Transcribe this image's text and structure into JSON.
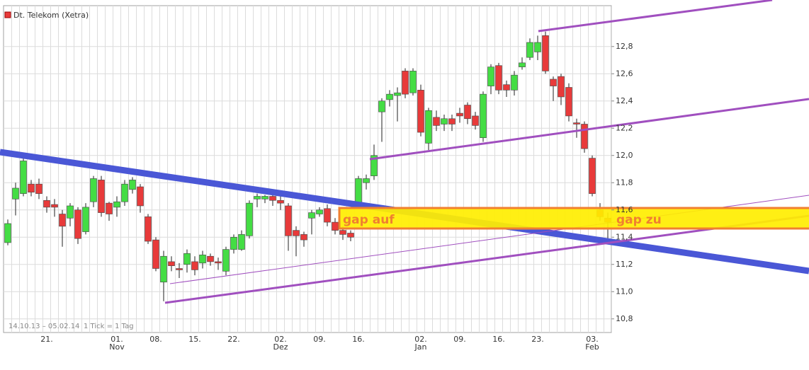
{
  "chart_data": {
    "type": "candlestick",
    "series": [
      {
        "name": "Dt. Telekom (Xetra)",
        "color": "#e83a3a",
        "open": [
          11.36,
          11.68,
          11.72,
          11.79,
          11.79,
          11.67,
          11.64,
          11.57,
          11.54,
          11.6,
          11.44,
          11.66,
          11.82,
          11.65,
          11.62,
          11.66,
          11.75,
          11.77,
          11.55,
          11.38,
          11.07,
          11.22,
          11.17,
          11.2,
          11.22,
          11.21,
          11.26,
          11.22,
          11.15,
          11.31,
          11.31,
          11.41,
          11.68,
          11.68,
          11.7,
          11.67,
          11.63,
          11.45,
          11.42,
          11.54,
          11.57,
          11.61,
          11.51,
          11.45,
          11.43,
          11.65,
          11.8,
          11.85,
          12.32,
          12.41,
          12.44,
          12.62,
          12.46,
          12.48,
          12.09,
          12.28,
          12.23,
          12.27,
          12.31,
          12.37,
          12.29,
          12.13,
          12.51,
          12.66,
          12.52,
          12.48,
          12.65,
          12.72,
          12.76,
          12.88,
          12.56,
          12.58,
          12.5,
          12.24,
          12.23,
          11.98,
          11.6,
          11.54
        ],
        "high": [
          11.53,
          11.8,
          11.98,
          11.82,
          11.83,
          11.7,
          11.68,
          11.6,
          11.65,
          11.62,
          11.65,
          11.85,
          11.85,
          11.66,
          11.7,
          11.82,
          11.84,
          11.79,
          11.57,
          11.4,
          11.3,
          11.26,
          11.21,
          11.31,
          11.26,
          11.3,
          11.28,
          11.25,
          11.33,
          11.42,
          11.45,
          11.67,
          11.72,
          11.71,
          11.72,
          11.7,
          11.65,
          11.48,
          11.44,
          11.6,
          11.62,
          11.64,
          11.54,
          11.48,
          11.45,
          11.85,
          11.86,
          12.08,
          12.42,
          12.48,
          12.5,
          12.64,
          12.64,
          12.52,
          12.35,
          12.33,
          12.3,
          12.3,
          12.35,
          12.39,
          12.32,
          12.47,
          12.67,
          12.68,
          12.55,
          12.62,
          12.72,
          12.86,
          12.88,
          12.91,
          12.58,
          12.6,
          12.53,
          12.27,
          12.25,
          12.0,
          11.65,
          11.58
        ],
        "low": [
          11.34,
          11.56,
          11.7,
          11.7,
          11.68,
          11.58,
          11.55,
          11.33,
          11.48,
          11.35,
          11.42,
          11.62,
          11.55,
          11.52,
          11.55,
          11.63,
          11.72,
          11.58,
          11.35,
          11.15,
          10.93,
          11.15,
          11.1,
          11.14,
          11.12,
          11.17,
          11.19,
          11.16,
          11.12,
          11.28,
          11.3,
          11.39,
          11.62,
          11.65,
          11.63,
          11.6,
          11.3,
          11.26,
          11.33,
          11.42,
          11.55,
          11.48,
          11.42,
          11.38,
          11.37,
          11.62,
          11.75,
          11.82,
          12.1,
          12.36,
          12.25,
          12.42,
          12.44,
          12.14,
          12.04,
          12.18,
          12.18,
          12.18,
          12.24,
          12.23,
          12.19,
          12.1,
          12.45,
          12.45,
          12.43,
          12.44,
          12.63,
          12.7,
          12.7,
          12.6,
          12.4,
          12.37,
          12.25,
          12.13,
          12.02,
          11.7,
          11.52,
          11.36
        ],
        "close": [
          11.5,
          11.76,
          11.96,
          11.73,
          11.72,
          11.62,
          11.62,
          11.48,
          11.63,
          11.39,
          11.62,
          11.83,
          11.58,
          11.57,
          11.66,
          11.79,
          11.82,
          11.63,
          11.37,
          11.17,
          11.26,
          11.19,
          11.16,
          11.28,
          11.16,
          11.27,
          11.22,
          11.21,
          11.31,
          11.4,
          11.42,
          11.65,
          11.7,
          11.7,
          11.67,
          11.65,
          11.41,
          11.41,
          11.38,
          11.58,
          11.6,
          11.51,
          11.45,
          11.42,
          11.4,
          11.83,
          11.83,
          12.0,
          12.4,
          12.45,
          12.46,
          12.45,
          12.62,
          12.17,
          12.33,
          12.22,
          12.27,
          12.23,
          12.29,
          12.27,
          12.22,
          12.45,
          12.65,
          12.48,
          12.48,
          12.59,
          12.68,
          12.83,
          12.83,
          12.62,
          12.51,
          12.43,
          12.29,
          12.23,
          12.05,
          11.72,
          11.55,
          11.51
        ]
      }
    ],
    "up_color": "#44dd44",
    "down_color": "#e83a3a",
    "categories": [
      null,
      null,
      null,
      null,
      null,
      "21.",
      null,
      null,
      null,
      null,
      null,
      null,
      null,
      null,
      "01.",
      null,
      null,
      null,
      null,
      "08.",
      null,
      null,
      null,
      null,
      "15.",
      null,
      null,
      null,
      null,
      "22.",
      null,
      null,
      null,
      null,
      null,
      "02.",
      null,
      null,
      null,
      null,
      "09.",
      null,
      null,
      null,
      null,
      "16.",
      null,
      null,
      null,
      null,
      null,
      null,
      null,
      "02.",
      null,
      null,
      null,
      null,
      "09.",
      null,
      null,
      null,
      null,
      "16.",
      null,
      null,
      null,
      null,
      "23.",
      null,
      null,
      null,
      null,
      null,
      null,
      "03.",
      null,
      null
    ],
    "months": [
      null,
      null,
      null,
      null,
      null,
      null,
      null,
      null,
      null,
      null,
      null,
      null,
      null,
      null,
      "Nov",
      null,
      null,
      null,
      null,
      null,
      null,
      null,
      null,
      null,
      null,
      null,
      null,
      null,
      null,
      null,
      null,
      null,
      null,
      null,
      null,
      "Dez",
      null,
      null,
      null,
      null,
      null,
      null,
      null,
      null,
      null,
      null,
      null,
      null,
      null,
      null,
      null,
      null,
      null,
      "Jan",
      null,
      null,
      null,
      null,
      null,
      null,
      null,
      null,
      null,
      null,
      null,
      null,
      null,
      null,
      null,
      null,
      null,
      null,
      null,
      null,
      null,
      "Feb",
      null,
      null
    ],
    "ylim": [
      10.7,
      13.1
    ],
    "yticks": [
      {
        "value": 10.8,
        "label": "10,8"
      },
      {
        "value": 11.0,
        "label": "11,0"
      },
      {
        "value": 11.2,
        "label": "11,2"
      },
      {
        "value": 11.4,
        "label": "11,4"
      },
      {
        "value": 11.6,
        "label": "11,6"
      },
      {
        "value": 11.8,
        "label": "11,8"
      },
      {
        "value": 12.0,
        "label": "12,0"
      },
      {
        "value": 12.2,
        "label": "12,2"
      },
      {
        "value": 12.4,
        "label": "12,4"
      },
      {
        "value": 12.6,
        "label": "12,6"
      },
      {
        "value": 12.8,
        "label": "12,8"
      }
    ],
    "grid": true,
    "date_range": "14.10.13 – 05.02.14",
    "tick_note": "1 Tick = 1 Tag",
    "annotations": [
      {
        "text": "gap  auf"
      },
      {
        "text": "gap zu"
      }
    ]
  }
}
